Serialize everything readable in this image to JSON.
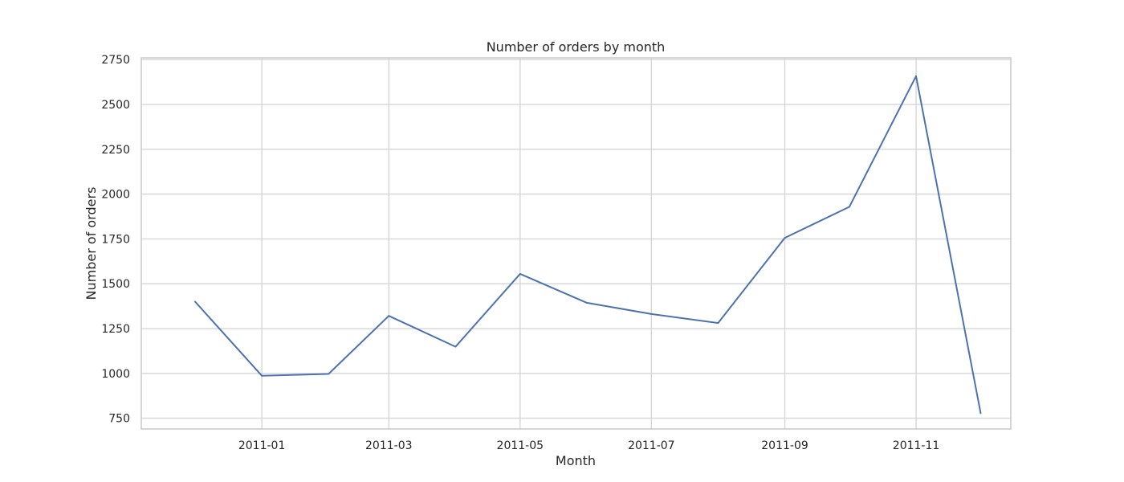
{
  "chart_data": {
    "type": "line",
    "title": "Number of orders by month",
    "xlabel": "Month",
    "ylabel": "Number of orders",
    "x_tick_labels": [
      "2011-01",
      "2011-03",
      "2011-05",
      "2011-07",
      "2011-09",
      "2011-11"
    ],
    "y_ticks": [
      750,
      1000,
      1250,
      1500,
      1750,
      2000,
      2250,
      2500,
      2750
    ],
    "ylim": [
      690,
      2760
    ],
    "xlim": [
      "2010-11-06",
      "2011-12-15"
    ],
    "grid": true,
    "line_color": "#4c72b0",
    "series": [
      {
        "x": [
          "2010-12-01",
          "2011-01-01",
          "2011-02-01",
          "2011-03-01",
          "2011-04-01",
          "2011-05-01",
          "2011-06-01",
          "2011-07-01",
          "2011-08-01",
          "2011-09-01",
          "2011-10-01",
          "2011-11-01",
          "2011-12-01"
        ],
        "values": [
          1400,
          987,
          997,
          1321,
          1149,
          1555,
          1394,
          1331,
          1281,
          1756,
          1929,
          2658,
          778
        ]
      }
    ]
  }
}
